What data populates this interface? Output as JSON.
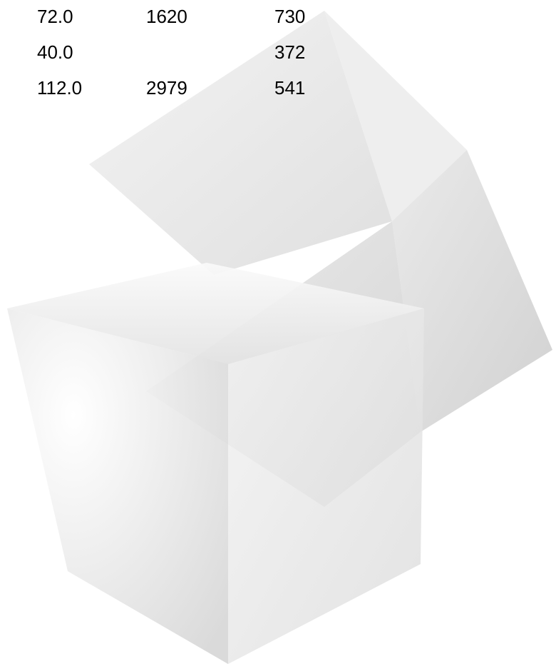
{
  "table": {
    "rows": [
      [
        "72.0",
        "1620",
        "730"
      ],
      [
        "40.0",
        null,
        "372"
      ],
      [
        "112.0",
        "2979",
        "541"
      ]
    ]
  }
}
